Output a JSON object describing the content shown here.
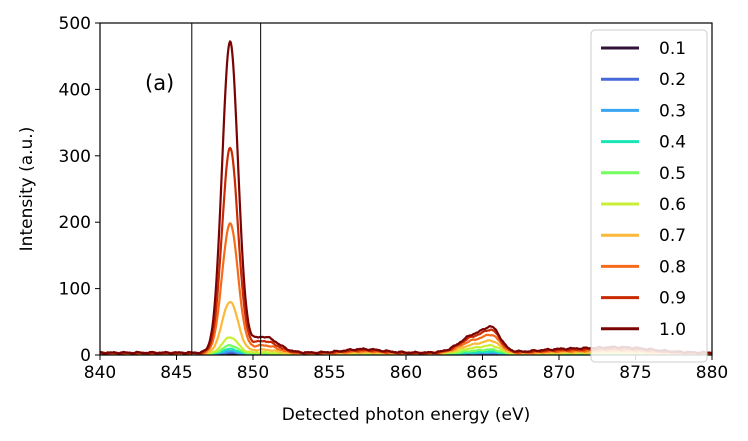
{
  "chart_data": {
    "type": "line",
    "xlabel": "Detected photon energy (eV)",
    "ylabel": "Intensity (a.u.)",
    "xlim": [
      840,
      880
    ],
    "ylim": [
      0,
      500
    ],
    "xticks": [
      840,
      845,
      850,
      855,
      860,
      865,
      870,
      875,
      880
    ],
    "yticks": [
      0,
      100,
      200,
      300,
      400,
      500
    ],
    "annotation": "(a)",
    "vlines": [
      846,
      850.5
    ],
    "legend_position": "top-right",
    "series": [
      {
        "name": "0.1",
        "color": "#30123b",
        "peak": 2,
        "base": 0.3,
        "shoulder": 0.2,
        "hump": 0.5,
        "tail": 0.3
      },
      {
        "name": "0.2",
        "color": "#4669d9",
        "peak": 3,
        "base": 0.5,
        "shoulder": 0.4,
        "hump": 1.0,
        "tail": 0.5
      },
      {
        "name": "0.3",
        "color": "#3aa6f2",
        "peak": 5,
        "base": 0.8,
        "shoulder": 0.7,
        "hump": 2.0,
        "tail": 0.8
      },
      {
        "name": "0.4",
        "color": "#1ae5b6",
        "peak": 8,
        "base": 1.0,
        "shoulder": 1.0,
        "hump": 3.0,
        "tail": 1.0
      },
      {
        "name": "0.5",
        "color": "#72fe5e",
        "peak": 13,
        "base": 1.3,
        "shoulder": 1.5,
        "hump": 5.0,
        "tail": 1.5
      },
      {
        "name": "0.6",
        "color": "#c8ef34",
        "peak": 25,
        "base": 1.6,
        "shoulder": 2.5,
        "hump": 9.0,
        "tail": 2.0
      },
      {
        "name": "0.7",
        "color": "#fbb938",
        "peak": 78,
        "base": 2.0,
        "shoulder": 6.0,
        "hump": 14.0,
        "tail": 3.0
      },
      {
        "name": "0.8",
        "color": "#f66b19",
        "peak": 195,
        "base": 2.5,
        "shoulder": 12.0,
        "hump": 20.0,
        "tail": 5.0
      },
      {
        "name": "0.9",
        "color": "#c92903",
        "peak": 308,
        "base": 3.0,
        "shoulder": 18.0,
        "hump": 25.0,
        "tail": 7.0
      },
      {
        "name": "1.0",
        "color": "#7a0403",
        "peak": 467,
        "base": 3.5,
        "shoulder": 24.0,
        "hump": 28.0,
        "tail": 9.0
      }
    ]
  }
}
